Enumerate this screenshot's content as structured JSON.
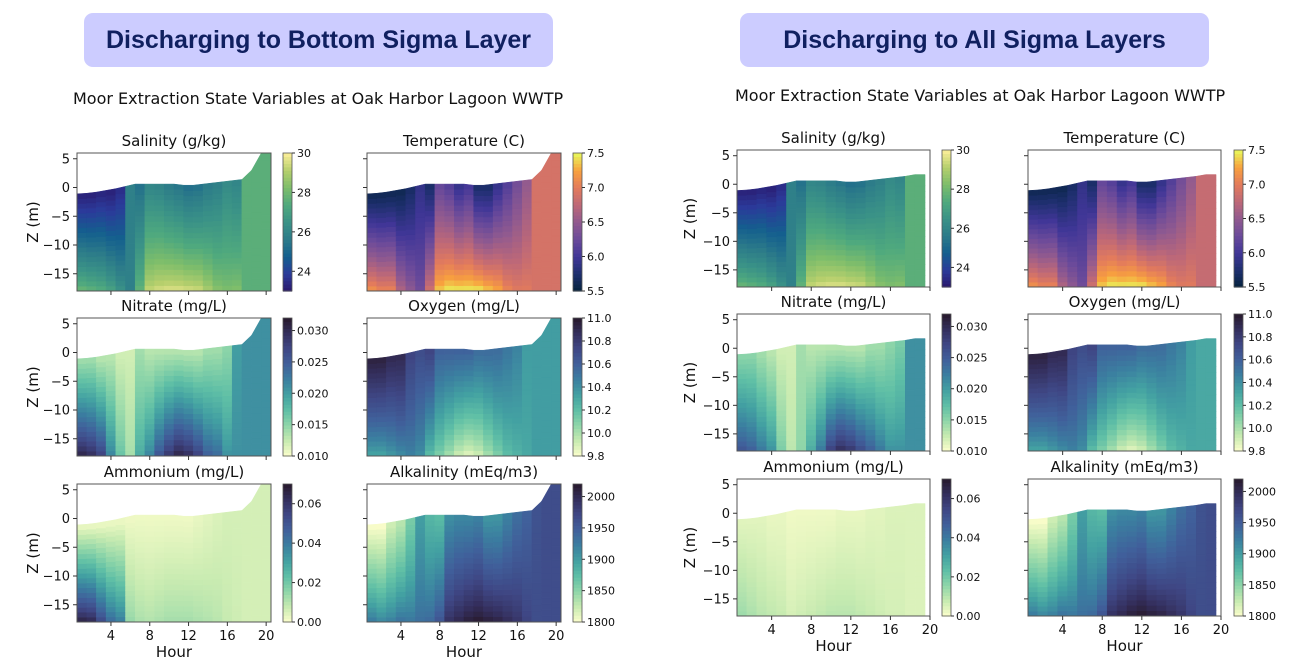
{
  "panels": [
    {
      "banner": "Discharging to Bottom Sigma Layer",
      "suptitle": "Moor Extraction State Variables at Oak Harbor Lagoon WWTP"
    },
    {
      "banner": "Discharging to All Sigma Layers",
      "suptitle": "Moor Extraction State Variables at Oak Harbor Lagoon WWTP"
    }
  ],
  "chart_data": [
    {
      "type": "heatmap",
      "scenario": "Discharging to Bottom Sigma Layer",
      "suptitle": "Moor Extraction State Variables at Oak Harbor Lagoon WWTP",
      "xlabel": "Hour",
      "ylabel": "Z (m)",
      "xlim": [
        0.5,
        20.5
      ],
      "ylim": [
        -18,
        6
      ],
      "xticks": [
        4,
        8,
        12,
        16,
        20
      ],
      "yticks": [
        5,
        0,
        -5,
        -10,
        -15
      ],
      "hours": [
        1,
        2,
        3,
        4,
        5,
        6,
        7,
        8,
        9,
        10,
        11,
        12,
        13,
        14,
        15,
        16,
        17,
        18,
        19,
        20
      ],
      "surface_elevation": [
        -1.1,
        -1.0,
        -0.8,
        -0.5,
        -0.2,
        0.2,
        0.6,
        0.6,
        0.6,
        0.6,
        0.6,
        0.4,
        0.4,
        0.6,
        0.8,
        1.0,
        1.2,
        1.4,
        3.0,
        6.0
      ],
      "subplots": [
        {
          "title": "Salinity (g/kg)",
          "cmap": "haline",
          "clim": [
            23,
            30
          ],
          "cbar_ticks": [
            "24",
            "26",
            "28",
            "30"
          ],
          "cbar_tick_values": [
            24,
            26,
            28,
            30
          ],
          "surface_value": [
            23.2,
            23.2,
            23.3,
            23.2,
            23.5,
            25.8,
            25.3,
            26.0,
            25.9,
            25.6,
            25.4,
            25.2,
            25.3,
            25.6,
            25.8,
            26.2,
            26.0,
            27.6,
            27.6,
            27.6
          ],
          "bottom_value": [
            28.0,
            27.8,
            27.6,
            27.2,
            26.6,
            25.8,
            27.8,
            29.4,
            29.6,
            29.7,
            29.7,
            29.6,
            29.5,
            29.0,
            28.5,
            28.3,
            28.4,
            27.6,
            27.6,
            27.6
          ]
        },
        {
          "title": "Temperature (C)",
          "cmap": "thermal",
          "clim": [
            5.5,
            7.5
          ],
          "cbar_ticks": [
            "5.5",
            "6.0",
            "6.5",
            "7.0",
            "7.5"
          ],
          "cbar_tick_values": [
            5.5,
            6.0,
            6.5,
            7.0,
            7.5
          ],
          "surface_value": [
            5.6,
            5.6,
            5.6,
            5.6,
            5.7,
            5.9,
            5.7,
            6.2,
            6.1,
            5.9,
            6.0,
            5.7,
            5.7,
            5.9,
            6.1,
            6.3,
            6.5,
            6.9,
            6.9,
            6.9
          ],
          "bottom_value": [
            7.2,
            7.1,
            7.1,
            6.7,
            6.5,
            6.3,
            6.9,
            7.4,
            7.5,
            7.5,
            7.5,
            7.5,
            7.4,
            7.3,
            7.1,
            7.0,
            7.0,
            6.9,
            6.9,
            6.9
          ]
        },
        {
          "title": "Nitrate (mg/L)",
          "cmap": "deep",
          "clim": [
            0.01,
            0.032
          ],
          "cbar_ticks": [
            "0.010",
            "0.015",
            "0.020",
            "0.025",
            "0.030"
          ],
          "cbar_tick_values": [
            0.01,
            0.015,
            0.02,
            0.025,
            0.03
          ],
          "surface_value": [
            0.014,
            0.014,
            0.013,
            0.013,
            0.012,
            0.012,
            0.014,
            0.013,
            0.013,
            0.013,
            0.013,
            0.013,
            0.013,
            0.014,
            0.014,
            0.015,
            0.02,
            0.021,
            0.021,
            0.021
          ],
          "bottom_value": [
            0.031,
            0.03,
            0.028,
            0.022,
            0.017,
            0.014,
            0.019,
            0.022,
            0.026,
            0.029,
            0.031,
            0.03,
            0.028,
            0.025,
            0.024,
            0.021,
            0.021,
            0.021,
            0.021,
            0.021
          ]
        },
        {
          "title": "Oxygen (mg/L)",
          "cmap": "deep",
          "clim": [
            9.8,
            11.0
          ],
          "cbar_ticks": [
            "9.8",
            "10.0",
            "10.2",
            "10.4",
            "10.6",
            "10.8",
            "11.0"
          ],
          "cbar_tick_values": [
            9.8,
            10.0,
            10.2,
            10.4,
            10.6,
            10.8,
            11.0
          ],
          "surface_value": [
            10.95,
            10.95,
            10.9,
            10.9,
            10.75,
            10.7,
            10.75,
            10.6,
            10.6,
            10.6,
            10.6,
            10.55,
            10.55,
            10.55,
            10.5,
            10.45,
            10.35,
            10.35,
            10.35,
            10.35
          ],
          "bottom_value": [
            10.3,
            10.3,
            10.35,
            10.4,
            10.45,
            10.4,
            10.2,
            10.1,
            10.0,
            9.9,
            9.85,
            9.9,
            10.0,
            10.1,
            10.2,
            10.25,
            10.3,
            10.35,
            10.35,
            10.35
          ]
        },
        {
          "title": "Ammonium (mg/L)",
          "cmap": "deep",
          "clim": [
            0.0,
            0.07
          ],
          "cbar_ticks": [
            "0.00",
            "0.02",
            "0.04",
            "0.06"
          ],
          "cbar_tick_values": [
            0.0,
            0.02,
            0.04,
            0.06
          ],
          "surface_value": [
            0.002,
            0.002,
            0.002,
            0.002,
            0.002,
            0.002,
            0.002,
            0.002,
            0.002,
            0.002,
            0.002,
            0.002,
            0.003,
            0.004,
            0.005,
            0.006,
            0.006,
            0.006,
            0.006,
            0.006
          ],
          "bottom_value": [
            0.068,
            0.066,
            0.055,
            0.045,
            0.04,
            0.015,
            0.012,
            0.011,
            0.012,
            0.013,
            0.013,
            0.013,
            0.012,
            0.011,
            0.01,
            0.008,
            0.007,
            0.006,
            0.006,
            0.006
          ]
        },
        {
          "title": "Alkalinity (mEq/m3)",
          "cmap": "deep",
          "clim": [
            1800,
            2020
          ],
          "cbar_ticks": [
            "1800",
            "1850",
            "1900",
            "1950",
            "2000"
          ],
          "cbar_tick_values": [
            1800,
            1850,
            1900,
            1950,
            2000
          ],
          "surface_value": [
            1800,
            1800,
            1820,
            1830,
            1860,
            1900,
            1880,
            1875,
            1910,
            1915,
            1915,
            1920,
            1905,
            1905,
            1920,
            1935,
            1945,
            1960,
            1965,
            1965
          ],
          "bottom_value": [
            1930,
            1920,
            1925,
            1935,
            1930,
            1935,
            1940,
            1960,
            1995,
            2005,
            2015,
            2020,
            2015,
            2010,
            2000,
            1990,
            1975,
            1965,
            1965,
            1965
          ]
        }
      ]
    },
    {
      "type": "heatmap",
      "scenario": "Discharging to All Sigma Layers",
      "suptitle": "Moor Extraction State Variables at Oak Harbor Lagoon WWTP",
      "xlabel": "Hour",
      "ylabel": "Z (m)",
      "xlim": [
        0.5,
        20
      ],
      "ylim": [
        -18,
        6
      ],
      "xticks": [
        4,
        8,
        12,
        16,
        20
      ],
      "yticks": [
        5,
        0,
        -5,
        -10,
        -15
      ],
      "hours": [
        1,
        2,
        3,
        4,
        5,
        6,
        7,
        8,
        9,
        10,
        11,
        12,
        13,
        14,
        15,
        16,
        17,
        18,
        19
      ],
      "surface_elevation": [
        -1.1,
        -1.0,
        -0.8,
        -0.5,
        -0.2,
        0.2,
        0.6,
        0.6,
        0.6,
        0.6,
        0.6,
        0.4,
        0.4,
        0.6,
        0.8,
        1.0,
        1.2,
        1.4,
        1.7
      ],
      "subplots": [
        {
          "title": "Salinity (g/kg)",
          "cmap": "haline",
          "clim": [
            23,
            30
          ],
          "cbar_ticks": [
            "24",
            "26",
            "28",
            "30"
          ],
          "cbar_tick_values": [
            24,
            26,
            28,
            30
          ],
          "surface_value": [
            23.2,
            23.2,
            23.3,
            23.2,
            23.5,
            25.8,
            25.3,
            26.0,
            25.9,
            25.6,
            25.4,
            25.2,
            25.3,
            25.6,
            25.8,
            26.2,
            26.0,
            27.6,
            27.6
          ],
          "bottom_value": [
            28.0,
            27.8,
            27.6,
            27.2,
            26.6,
            25.8,
            27.8,
            29.4,
            29.6,
            29.7,
            29.7,
            29.6,
            29.5,
            29.0,
            28.5,
            28.3,
            28.4,
            27.6,
            27.6
          ]
        },
        {
          "title": "Temperature (C)",
          "cmap": "thermal",
          "clim": [
            5.5,
            7.5
          ],
          "cbar_ticks": [
            "5.5",
            "6.0",
            "6.5",
            "7.0",
            "7.5"
          ],
          "cbar_tick_values": [
            5.5,
            6.0,
            6.5,
            7.0,
            7.5
          ],
          "surface_value": [
            5.6,
            5.6,
            5.6,
            5.6,
            5.7,
            5.9,
            5.7,
            6.2,
            6.1,
            5.9,
            6.0,
            5.7,
            5.7,
            5.9,
            6.1,
            6.3,
            6.5,
            6.8,
            6.8
          ],
          "bottom_value": [
            7.2,
            7.1,
            7.1,
            6.7,
            6.5,
            6.3,
            6.9,
            7.4,
            7.5,
            7.5,
            7.5,
            7.5,
            7.4,
            7.3,
            7.1,
            7.0,
            7.0,
            6.8,
            6.8
          ]
        },
        {
          "title": "Nitrate (mg/L)",
          "cmap": "deep",
          "clim": [
            0.01,
            0.032
          ],
          "cbar_ticks": [
            "0.010",
            "0.015",
            "0.020",
            "0.025",
            "0.030"
          ],
          "cbar_tick_values": [
            0.01,
            0.015,
            0.02,
            0.025,
            0.03
          ],
          "surface_value": [
            0.015,
            0.015,
            0.014,
            0.013,
            0.012,
            0.012,
            0.014,
            0.013,
            0.013,
            0.013,
            0.013,
            0.013,
            0.013,
            0.014,
            0.014,
            0.015,
            0.016,
            0.021,
            0.021
          ],
          "bottom_value": [
            0.026,
            0.025,
            0.023,
            0.021,
            0.016,
            0.013,
            0.015,
            0.019,
            0.023,
            0.028,
            0.03,
            0.029,
            0.027,
            0.025,
            0.023,
            0.021,
            0.021,
            0.021,
            0.021
          ]
        },
        {
          "title": "Oxygen (mg/L)",
          "cmap": "deep",
          "clim": [
            9.8,
            11.0
          ],
          "cbar_ticks": [
            "9.8",
            "10.0",
            "10.2",
            "10.4",
            "10.6",
            "10.8",
            "11.0"
          ],
          "cbar_tick_values": [
            9.8,
            10.0,
            10.2,
            10.4,
            10.6,
            10.8,
            11.0
          ],
          "surface_value": [
            10.95,
            10.95,
            10.9,
            10.9,
            10.75,
            10.7,
            10.75,
            10.6,
            10.6,
            10.6,
            10.6,
            10.55,
            10.55,
            10.55,
            10.5,
            10.45,
            10.35,
            10.3,
            10.3
          ],
          "bottom_value": [
            10.3,
            10.3,
            10.35,
            10.4,
            10.45,
            10.4,
            10.2,
            10.1,
            10.0,
            9.9,
            9.85,
            9.9,
            10.0,
            10.1,
            10.2,
            10.25,
            10.3,
            10.3,
            10.3
          ]
        },
        {
          "title": "Ammonium (mg/L)",
          "cmap": "deep",
          "clim": [
            0.0,
            0.07
          ],
          "cbar_ticks": [
            "0.00",
            "0.02",
            "0.04",
            "0.06"
          ],
          "cbar_tick_values": [
            0.0,
            0.02,
            0.04,
            0.06
          ],
          "surface_value": [
            0.004,
            0.004,
            0.004,
            0.003,
            0.003,
            0.002,
            0.002,
            0.002,
            0.002,
            0.002,
            0.003,
            0.003,
            0.003,
            0.004,
            0.004,
            0.005,
            0.005,
            0.005,
            0.005
          ],
          "bottom_value": [
            0.014,
            0.012,
            0.01,
            0.009,
            0.008,
            0.006,
            0.007,
            0.008,
            0.009,
            0.01,
            0.01,
            0.01,
            0.009,
            0.008,
            0.007,
            0.006,
            0.006,
            0.005,
            0.005
          ]
        },
        {
          "title": "Alkalinity (mEq/m3)",
          "cmap": "deep",
          "clim": [
            1800,
            2020
          ],
          "cbar_ticks": [
            "1800",
            "1850",
            "1900",
            "1950",
            "2000"
          ],
          "cbar_tick_values": [
            1800,
            1850,
            1900,
            1950,
            2000
          ],
          "surface_value": [
            1800,
            1800,
            1820,
            1830,
            1860,
            1900,
            1880,
            1875,
            1910,
            1915,
            1915,
            1920,
            1905,
            1905,
            1920,
            1935,
            1945,
            1960,
            1965
          ],
          "bottom_value": [
            1930,
            1920,
            1925,
            1935,
            1930,
            1935,
            1940,
            1960,
            1995,
            2005,
            2015,
            2020,
            2015,
            2010,
            2000,
            1990,
            1975,
            1965,
            1965
          ]
        }
      ]
    }
  ]
}
